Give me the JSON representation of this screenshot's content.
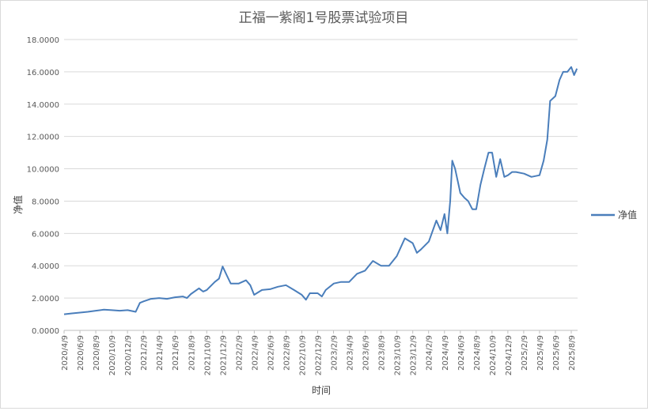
{
  "chart_data": {
    "type": "line",
    "title": "正福一紫阁1号股票试验项目",
    "xlabel": "时间",
    "ylabel": "净值",
    "ylim": [
      0,
      18
    ],
    "y_ticks": [
      "0.0000",
      "2.0000",
      "4.0000",
      "6.0000",
      "8.0000",
      "10.0000",
      "12.0000",
      "14.0000",
      "16.0000",
      "18.0000"
    ],
    "x_ticks": [
      "2020/4/9",
      "2020/6/9",
      "2020/8/9",
      "2020/10/9",
      "2020/12/9",
      "2021/2/9",
      "2021/4/9",
      "2021/6/9",
      "2021/8/9",
      "2021/10/9",
      "2021/12/9",
      "2022/2/9",
      "2022/4/9",
      "2022/6/9",
      "2022/8/9",
      "2022/10/9",
      "2022/12/9",
      "2023/2/9",
      "2023/4/9",
      "2023/6/9",
      "2023/8/9",
      "2023/10/9",
      "2023/12/9",
      "2024/2/9",
      "2024/4/9",
      "2024/6/9",
      "2024/8/9",
      "2024/10/9",
      "2024/12/9",
      "2025/2/9",
      "2025/4/9",
      "2025/6/9",
      "2025/8/9"
    ],
    "grid": true,
    "legend_position": "right",
    "series": [
      {
        "name": "净值",
        "color": "#4a7ebb",
        "x": [
          "2020/4/9",
          "2020/5/9",
          "2020/6/9",
          "2020/7/9",
          "2020/8/9",
          "2020/9/9",
          "2020/10/9",
          "2020/11/9",
          "2020/12/9",
          "2021/1/9",
          "2021/1/25",
          "2021/2/9",
          "2021/3/9",
          "2021/4/9",
          "2021/5/9",
          "2021/6/9",
          "2021/7/9",
          "2021/7/25",
          "2021/8/9",
          "2021/9/9",
          "2021/9/25",
          "2021/10/9",
          "2021/11/9",
          "2021/11/25",
          "2021/12/9",
          "2021/12/25",
          "2022/1/9",
          "2022/2/9",
          "2022/3/9",
          "2022/3/25",
          "2022/4/9",
          "2022/5/9",
          "2022/6/9",
          "2022/7/9",
          "2022/8/9",
          "2022/9/9",
          "2022/10/9",
          "2022/10/25",
          "2022/11/9",
          "2022/12/9",
          "2022/12/25",
          "2023/1/9",
          "2023/2/9",
          "2023/3/9",
          "2023/4/9",
          "2023/5/9",
          "2023/6/9",
          "2023/7/9",
          "2023/8/9",
          "2023/9/9",
          "2023/10/9",
          "2023/11/9",
          "2023/12/9",
          "2023/12/25",
          "2024/1/9",
          "2024/2/9",
          "2024/3/9",
          "2024/3/25",
          "2024/4/9",
          "2024/4/20",
          "2024/5/1",
          "2024/5/9",
          "2024/5/20",
          "2024/6/9",
          "2024/6/25",
          "2024/7/9",
          "2024/7/25",
          "2024/8/9",
          "2024/8/25",
          "2024/9/9",
          "2024/9/25",
          "2024/10/9",
          "2024/10/25",
          "2024/11/9",
          "2024/11/25",
          "2024/12/9",
          "2024/12/25",
          "2025/1/9",
          "2025/2/9",
          "2025/3/9",
          "2025/4/9",
          "2025/4/25",
          "2025/5/9",
          "2025/5/20",
          "2025/6/9",
          "2025/6/25",
          "2025/7/9",
          "2025/7/25",
          "2025/8/9",
          "2025/8/20",
          "2025/8/31"
        ],
        "values": [
          1.0,
          1.05,
          1.1,
          1.15,
          1.22,
          1.28,
          1.25,
          1.22,
          1.25,
          1.15,
          1.7,
          1.8,
          1.95,
          2.0,
          1.95,
          2.05,
          2.1,
          2.0,
          2.25,
          2.6,
          2.4,
          2.5,
          3.0,
          3.2,
          3.95,
          3.4,
          2.9,
          2.9,
          3.1,
          2.8,
          2.2,
          2.5,
          2.55,
          2.7,
          2.8,
          2.5,
          2.2,
          1.9,
          2.3,
          2.3,
          2.1,
          2.5,
          2.9,
          3.0,
          3.0,
          3.5,
          3.7,
          4.3,
          4.0,
          4.0,
          4.6,
          5.7,
          5.4,
          4.8,
          5.0,
          5.5,
          6.8,
          6.2,
          7.2,
          6.0,
          8.0,
          10.5,
          10.0,
          8.5,
          8.2,
          8.0,
          7.5,
          7.5,
          9.0,
          10.0,
          11.0,
          11.0,
          9.5,
          10.6,
          9.5,
          9.6,
          9.8,
          9.8,
          9.7,
          9.5,
          9.6,
          10.5,
          11.8,
          14.2,
          14.5,
          15.5,
          16.0,
          16.0,
          16.3,
          15.8,
          16.2
        ]
      }
    ]
  }
}
